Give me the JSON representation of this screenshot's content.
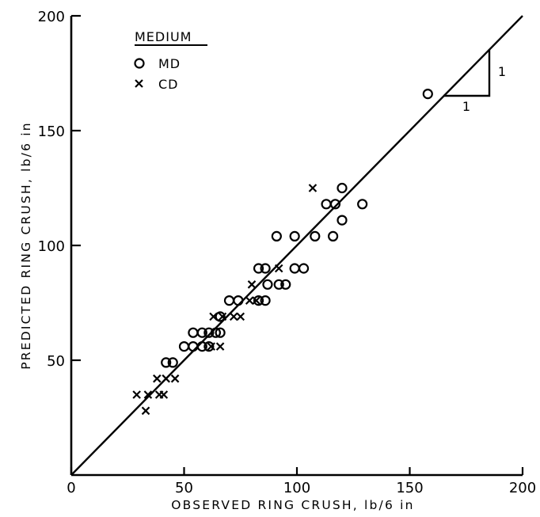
{
  "chart_data": {
    "type": "scatter",
    "xlabel": "OBSERVED RING CRUSH,  lb/6 in",
    "ylabel": "PREDICTED RING CRUSH,  lb/6 in",
    "xlim": [
      0,
      200
    ],
    "ylim": [
      0,
      200
    ],
    "x_ticks": [
      "0",
      "50",
      "100",
      "150",
      "200"
    ],
    "y_ticks": [
      "50",
      "100",
      "150",
      "200"
    ],
    "grid": false,
    "legend": {
      "title": "MEDIUM",
      "placement": "top-left",
      "entries": [
        {
          "marker": "circle",
          "label": "MD"
        },
        {
          "marker": "x",
          "label": "CD"
        }
      ]
    },
    "reference_line": {
      "slope": 1,
      "intercept": 0,
      "from": [
        0,
        0
      ],
      "to": [
        200,
        200
      ]
    },
    "slope_triangle": {
      "run_label": "1",
      "rise_label": "1"
    },
    "series": [
      {
        "name": "MD",
        "marker": "circle",
        "points": [
          [
            42,
            49
          ],
          [
            45,
            49
          ],
          [
            50,
            56
          ],
          [
            54,
            56
          ],
          [
            58,
            56
          ],
          [
            61,
            56
          ],
          [
            54,
            62
          ],
          [
            58,
            62
          ],
          [
            61,
            62
          ],
          [
            64,
            62
          ],
          [
            66,
            62
          ],
          [
            66,
            69
          ],
          [
            70,
            76
          ],
          [
            74,
            76
          ],
          [
            83,
            76
          ],
          [
            86,
            76
          ],
          [
            83,
            90
          ],
          [
            86,
            90
          ],
          [
            87,
            83
          ],
          [
            92,
            83
          ],
          [
            91,
            104
          ],
          [
            99,
            104
          ],
          [
            99,
            90
          ],
          [
            103,
            90
          ],
          [
            95,
            83
          ],
          [
            108,
            104
          ],
          [
            116,
            104
          ],
          [
            113,
            118
          ],
          [
            117,
            118
          ],
          [
            120,
            125
          ],
          [
            120,
            111
          ],
          [
            129,
            118
          ],
          [
            158,
            166
          ]
        ]
      },
      {
        "name": "CD",
        "marker": "x",
        "points": [
          [
            29,
            35
          ],
          [
            34,
            35
          ],
          [
            39,
            35
          ],
          [
            41,
            35
          ],
          [
            38,
            42
          ],
          [
            42,
            42
          ],
          [
            46,
            42
          ],
          [
            33,
            28
          ],
          [
            62,
            56
          ],
          [
            66,
            56
          ],
          [
            63,
            69
          ],
          [
            67,
            69
          ],
          [
            72,
            69
          ],
          [
            75,
            69
          ],
          [
            79,
            76
          ],
          [
            82,
            76
          ],
          [
            80,
            83
          ],
          [
            92,
            90
          ],
          [
            107,
            125
          ]
        ]
      }
    ]
  }
}
